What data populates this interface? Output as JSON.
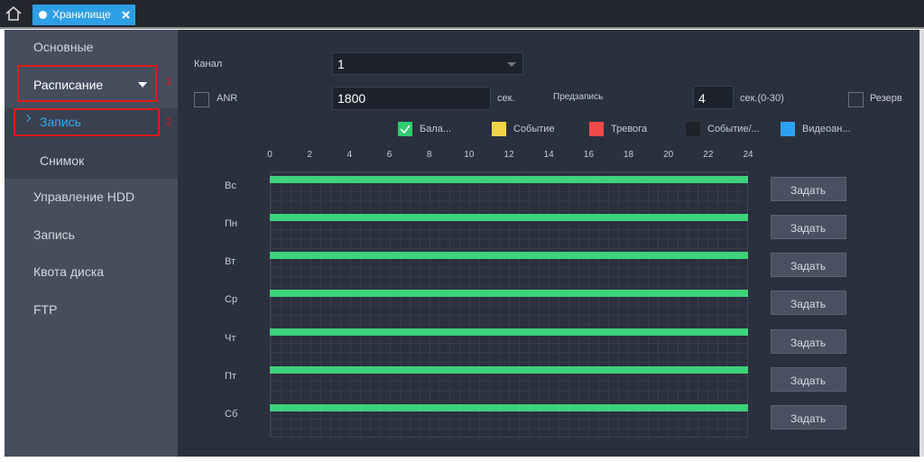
{
  "tab": {
    "label": "Хранилище"
  },
  "sidebar": {
    "items": [
      "Основные",
      "Расписание",
      "Запись",
      "Снимок",
      "Управление HDD",
      "Запись",
      "Квота диска",
      "FTP"
    ]
  },
  "annotations": [
    "1",
    "2"
  ],
  "form": {
    "channel_label": "Канал",
    "channel_value": "1",
    "anr_label": "ANR",
    "anr_value": "1800",
    "anr_unit": "сек.",
    "prerecord_label": "Предзапись",
    "prerecord_value": "4",
    "prerecord_unit": "сек.(0-30)",
    "reserve_label": "Резерв"
  },
  "legend": [
    {
      "label": "Бала...",
      "color": "#2ecc71"
    },
    {
      "label": "Событие",
      "color": "#f0d54a"
    },
    {
      "label": "Тревога",
      "color": "#f04a4a"
    },
    {
      "label": "Событие/...",
      "color": "#1f2229"
    },
    {
      "label": "Видеоан...",
      "color": "#2ea0f0"
    }
  ],
  "hours": [
    0,
    2,
    4,
    6,
    8,
    10,
    12,
    14,
    16,
    18,
    20,
    22,
    24
  ],
  "days": [
    {
      "day": "Вс",
      "button": "Задать"
    },
    {
      "day": "Пн",
      "button": "Задать"
    },
    {
      "day": "Вт",
      "button": "Задать"
    },
    {
      "day": "Ср",
      "button": "Задать"
    },
    {
      "day": "Чт",
      "button": "Задать"
    },
    {
      "day": "Пт",
      "button": "Задать"
    },
    {
      "day": "Сб",
      "button": "Задать"
    }
  ]
}
